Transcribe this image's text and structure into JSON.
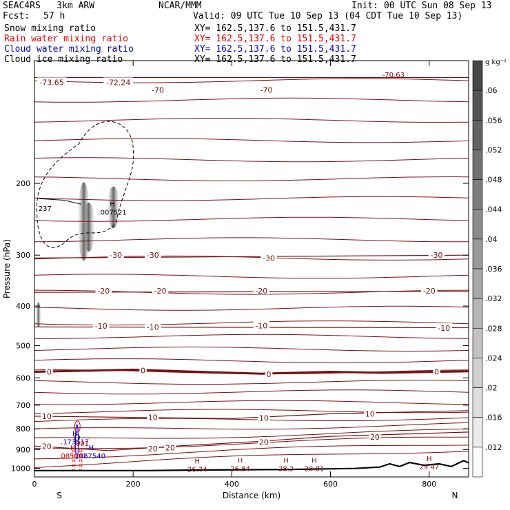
{
  "header": {
    "model": "SEAC4RS   3km ARW",
    "center": "NCAR/MMM",
    "init": "Init: 00 UTC Sun 08 Sep 13",
    "fcst_label": "Fcst:",
    "fcst_value": "57 h",
    "valid": "Valid: 09 UTC Tue 10 Sep 13 (04 CDT Tue 10 Sep 13)"
  },
  "fields": [
    {
      "name": "Snow mixing ratio",
      "xy": "XY= 162.5,137.6 to 151.5,431.7",
      "color": "#000000"
    },
    {
      "name": "Rain water mixing ratio",
      "xy": "XY= 162.5,137.6 to 151.5,431.7",
      "color": "#e00000"
    },
    {
      "name": "Cloud water mixing ratio",
      "xy": "XY= 162.5,137.6 to 151.5,431.7",
      "color": "#0000c0"
    },
    {
      "name": "Cloud ice mixing ratio",
      "xy": "XY= 162.5,137.6 to 151.5,431.7",
      "color": "#000000"
    }
  ],
  "chart_data": {
    "type": "contour-cross-section",
    "xlabel": "Distance (km)",
    "ylabel": "Pressure (hPa)",
    "xlim": [
      0,
      880
    ],
    "ylim": [
      1050,
      100
    ],
    "x_ticks": [
      0,
      200,
      400,
      600,
      800
    ],
    "y_ticks": [
      200,
      300,
      400,
      500,
      600,
      700,
      800,
      900,
      1000
    ],
    "x_end_labels": {
      "left": "S",
      "right": "N"
    },
    "colorbar": {
      "unit": "g kg⁻¹",
      "levels": [
        ".06",
        ".056",
        ".052",
        ".048",
        ".044",
        ".04",
        ".036",
        ".032",
        ".028",
        ".024",
        ".02",
        ".016",
        ".012"
      ]
    },
    "temperature_isotherms": [
      {
        "label": "-70",
        "pressure_at_x": [
          [
            0,
            110
          ],
          [
            880,
            110
          ]
        ]
      },
      {
        "label": "-30",
        "pressure_at_x": [
          [
            0,
            305
          ],
          [
            880,
            300
          ]
        ]
      },
      {
        "label": "-20",
        "pressure_at_x": [
          [
            0,
            370
          ],
          [
            880,
            368
          ]
        ]
      },
      {
        "label": "-10",
        "pressure_at_x": [
          [
            0,
            450
          ],
          [
            880,
            452
          ]
        ]
      },
      {
        "label": "0",
        "pressure_at_x": [
          [
            0,
            580
          ],
          [
            200,
            573
          ],
          [
            300,
            578
          ],
          [
            460,
            586
          ],
          [
            600,
            580
          ],
          [
            700,
            583
          ],
          [
            880,
            578
          ]
        ]
      },
      {
        "label": "10",
        "pressure_at_x": [
          [
            0,
            745
          ],
          [
            200,
            750
          ],
          [
            400,
            755
          ],
          [
            600,
            735
          ],
          [
            880,
            722
          ]
        ]
      },
      {
        "label": "20",
        "pressure_at_x": [
          [
            0,
            882
          ],
          [
            150,
            905
          ],
          [
            300,
            880
          ],
          [
            450,
            860
          ],
          [
            600,
            835
          ],
          [
            880,
            815
          ]
        ]
      }
    ],
    "isotherm_labels": [
      {
        "text": "-73.65",
        "x": 35,
        "p": 113
      },
      {
        "text": "-72.24",
        "x": 170,
        "p": 113
      },
      {
        "text": "-70",
        "x": 250,
        "p": 118
      },
      {
        "text": "-70",
        "x": 470,
        "p": 118
      },
      {
        "text": "-30",
        "x": 165,
        "p": 300
      },
      {
        "text": "-30",
        "x": 240,
        "p": 300
      },
      {
        "text": "-30",
        "x": 475,
        "p": 305
      },
      {
        "text": "-30",
        "x": 815,
        "p": 300
      },
      {
        "text": "-20",
        "x": 140,
        "p": 367
      },
      {
        "text": "-20",
        "x": 255,
        "p": 367
      },
      {
        "text": "-20",
        "x": 460,
        "p": 367
      },
      {
        "text": "-20",
        "x": 800,
        "p": 367
      },
      {
        "text": "-10",
        "x": 135,
        "p": 448
      },
      {
        "text": "-10",
        "x": 240,
        "p": 450
      },
      {
        "text": "-10",
        "x": 460,
        "p": 447
      },
      {
        "text": "-10",
        "x": 830,
        "p": 453
      },
      {
        "text": "0",
        "x": 30,
        "p": 580
      },
      {
        "text": "0",
        "x": 220,
        "p": 575
      },
      {
        "text": "0",
        "x": 475,
        "p": 588
      },
      {
        "text": "0",
        "x": 815,
        "p": 580
      },
      {
        "text": "10",
        "x": 25,
        "p": 745
      },
      {
        "text": "10",
        "x": 240,
        "p": 750
      },
      {
        "text": "10",
        "x": 465,
        "p": 753
      },
      {
        "text": "10",
        "x": 680,
        "p": 735
      },
      {
        "text": "20",
        "x": 25,
        "p": 883
      },
      {
        "text": "20",
        "x": 240,
        "p": 895
      },
      {
        "text": "20",
        "x": 275,
        "p": 890
      },
      {
        "text": "20",
        "x": 465,
        "p": 862
      },
      {
        "text": "20",
        "x": 690,
        "p": 838
      }
    ],
    "extrema_labels": [
      {
        "mark": "H",
        "value": ".007521",
        "x": 158,
        "p": 235,
        "color": "#000000"
      },
      {
        "mark": "H",
        "value": ".173617",
        "x": 82,
        "p": 860,
        "color": "#0000c0"
      },
      {
        "mark": "",
        "value": ".001",
        "x": 95,
        "p": 868,
        "color": "#e00000"
      },
      {
        "mark": "H",
        "value": ".085001",
        "x": 78,
        "p": 930,
        "color": "#e00000"
      },
      {
        "mark": "H",
        "value": ".087540",
        "x": 115,
        "p": 930,
        "color": "#0000c0"
      },
      {
        "mark": "H",
        "value": "26.74",
        "x": 330,
        "p": 1005,
        "color": "#7a1010"
      },
      {
        "mark": "H",
        "value": "26.84",
        "x": 417,
        "p": 1000,
        "color": "#7a1010"
      },
      {
        "mark": "H",
        "value": "28.2",
        "x": 510,
        "p": 1000,
        "color": "#7a1010"
      },
      {
        "mark": "H",
        "value": "28.81",
        "x": 567,
        "p": 1000,
        "color": "#7a1010"
      },
      {
        "mark": "H",
        "value": "29.47",
        "x": 800,
        "p": 990,
        "color": "#7a1010"
      }
    ],
    "misc_labels": [
      {
        "text": "237",
        "x": 8,
        "p": 230,
        "color": "#000000"
      },
      {
        "text": "-70.63",
        "x": 705,
        "p": 108,
        "color": "#7a1010"
      }
    ],
    "terrain_surface": [
      [
        0,
        1013
      ],
      [
        230,
        1013
      ],
      [
        330,
        1010
      ],
      [
        500,
        1007
      ],
      [
        650,
        1001
      ],
      [
        700,
        993
      ],
      [
        720,
        975
      ],
      [
        740,
        990
      ],
      [
        760,
        968
      ],
      [
        790,
        983
      ],
      [
        820,
        975
      ],
      [
        845,
        990
      ],
      [
        870,
        958
      ],
      [
        880,
        970
      ]
    ]
  }
}
